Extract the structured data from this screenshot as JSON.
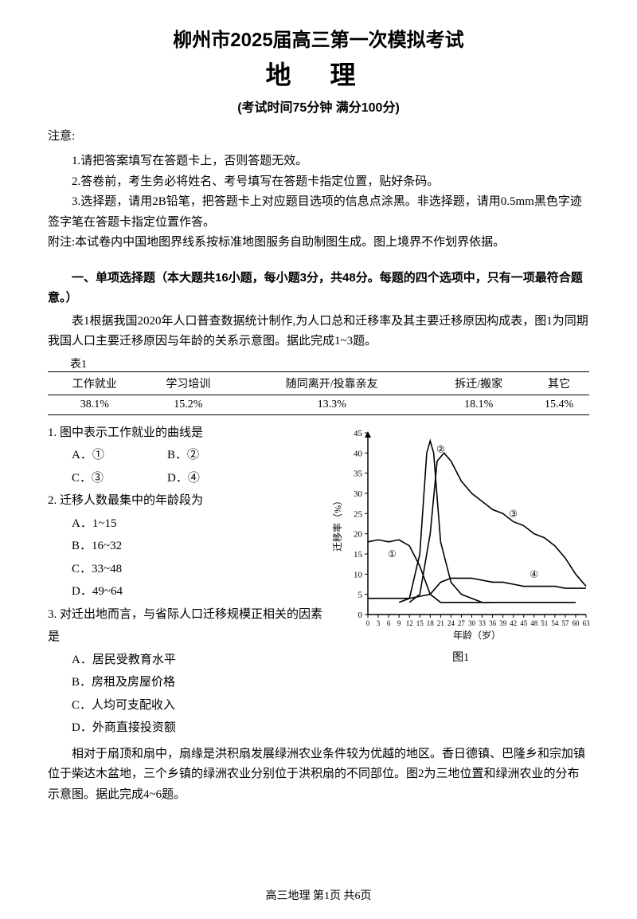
{
  "header": {
    "title_line1": "柳州市2025届高三第一次模拟考试",
    "title_line2": "地 理",
    "title_line3": "(考试时间75分钟    满分100分)"
  },
  "notice": {
    "heading": "注意:",
    "items": [
      "1.请把答案填写在答题卡上，否则答题无效。",
      "2.答卷前，考生务必将姓名、考号填写在答题卡指定位置，贴好条码。",
      "3.选择题，请用2B铅笔，把答题卡上对应题目选项的信息点涂黑。非选择题，请用0.5mm黑色字迹签字笔在答题卡指定位置作答。"
    ],
    "appendix": "附注:本试卷内中国地图界线系按标准地图服务自助制图生成。图上境界不作划界依据。"
  },
  "section1": {
    "heading": "一、单项选择题（本大题共16小题，每小题3分，共48分。每题的四个选项中，只有一项最符合题意。）",
    "context1": "表1根据我国2020年人口普查数据统计制作,为人口总和迁移率及其主要迁移原因构成表，图1为同期我国人口主要迁移原因与年龄的关系示意图。据此完成1~3题。"
  },
  "table1": {
    "label": "表1",
    "columns": [
      "工作就业",
      "学习培训",
      "随同离开/投靠亲友",
      "拆迁/搬家",
      "其它"
    ],
    "row": [
      "38.1%",
      "15.2%",
      "13.3%",
      "18.1%",
      "15.4%"
    ]
  },
  "questions": {
    "q1": {
      "stem": "1. 图中表示工作就业的曲线是",
      "opts": {
        "A": "A．①",
        "B": "B．②",
        "C": "C．③",
        "D": "D．④"
      }
    },
    "q2": {
      "stem": "2. 迁移人数最集中的年龄段为",
      "opts": {
        "A": "A．1~15",
        "B": "B．16~32",
        "C": "C．33~48",
        "D": "D．49~64"
      }
    },
    "q3": {
      "stem": "3. 对迁出地而言，与省际人口迁移规模正相关的因素是",
      "opts": {
        "A": "A．居民受教育水平",
        "B": "B．房租及房屋价格",
        "C": "C．人均可支配收入",
        "D": "D．外商直接投资额"
      }
    }
  },
  "chart1": {
    "caption": "图1",
    "y_label": "迁移率（%）",
    "x_label": "年龄（岁）",
    "ylim": [
      0,
      45
    ],
    "ytick_step": 5,
    "yticks": [
      0,
      5,
      10,
      15,
      20,
      25,
      30,
      35,
      40,
      45
    ],
    "xticks": [
      0,
      3,
      6,
      9,
      12,
      15,
      18,
      21,
      24,
      27,
      30,
      33,
      36,
      39,
      42,
      45,
      48,
      51,
      54,
      57,
      60,
      63
    ],
    "line_color": "#000000",
    "axis_color": "#000000",
    "background_color": "#ffffff",
    "line_width": 1.6,
    "series": {
      "1": {
        "label": "①",
        "points": [
          [
            0,
            18
          ],
          [
            3,
            18.5
          ],
          [
            6,
            18
          ],
          [
            9,
            18.5
          ],
          [
            12,
            17
          ],
          [
            15,
            12
          ],
          [
            18,
            5
          ],
          [
            21,
            3
          ],
          [
            24,
            3
          ],
          [
            27,
            3
          ],
          [
            30,
            3
          ],
          [
            33,
            3
          ],
          [
            36,
            3
          ],
          [
            39,
            3
          ],
          [
            42,
            3
          ],
          [
            45,
            3
          ],
          [
            48,
            3
          ],
          [
            51,
            3
          ],
          [
            54,
            3
          ],
          [
            57,
            3
          ],
          [
            60,
            3
          ]
        ]
      },
      "2": {
        "label": "②",
        "points": [
          [
            9,
            3
          ],
          [
            12,
            4
          ],
          [
            15,
            15
          ],
          [
            17,
            40
          ],
          [
            18,
            43
          ],
          [
            19,
            40
          ],
          [
            21,
            18
          ],
          [
            24,
            8
          ],
          [
            27,
            5
          ],
          [
            30,
            4
          ],
          [
            33,
            3
          ],
          [
            36,
            3
          ]
        ]
      },
      "3": {
        "label": "③",
        "points": [
          [
            12,
            3
          ],
          [
            15,
            5
          ],
          [
            18,
            20
          ],
          [
            20,
            38
          ],
          [
            22,
            40
          ],
          [
            24,
            38
          ],
          [
            27,
            33
          ],
          [
            30,
            30
          ],
          [
            33,
            28
          ],
          [
            36,
            26
          ],
          [
            39,
            25
          ],
          [
            42,
            23
          ],
          [
            45,
            22
          ],
          [
            48,
            20
          ],
          [
            51,
            19
          ],
          [
            54,
            17
          ],
          [
            57,
            14
          ],
          [
            60,
            10
          ],
          [
            63,
            7
          ]
        ]
      },
      "4": {
        "label": "④",
        "points": [
          [
            0,
            4
          ],
          [
            6,
            4
          ],
          [
            12,
            4
          ],
          [
            18,
            5
          ],
          [
            21,
            8
          ],
          [
            24,
            9
          ],
          [
            27,
            9
          ],
          [
            30,
            9
          ],
          [
            33,
            8.5
          ],
          [
            36,
            8
          ],
          [
            39,
            8
          ],
          [
            42,
            7.5
          ],
          [
            45,
            7
          ],
          [
            48,
            7
          ],
          [
            51,
            7
          ],
          [
            54,
            7
          ],
          [
            57,
            6.5
          ],
          [
            60,
            6.5
          ],
          [
            63,
            6.5
          ]
        ]
      }
    },
    "curve_labels": {
      "1": {
        "text": "①",
        "x": 7,
        "y": 15
      },
      "2": {
        "text": "②",
        "x": 21,
        "y": 41
      },
      "3": {
        "text": "③",
        "x": 42,
        "y": 25
      },
      "4": {
        "text": "④",
        "x": 48,
        "y": 10
      }
    }
  },
  "context2": "相对于扇顶和扇中，扇缘是洪积扇发展绿洲农业条件较为优越的地区。香日德镇、巴隆乡和宗加镇位于柴达木盆地，三个乡镇的绿洲农业分别位于洪积扇的不同部位。图2为三地位置和绿洲农业的分布示意图。据此完成4~6题。",
  "footer": "高三地理  第1页  共6页"
}
